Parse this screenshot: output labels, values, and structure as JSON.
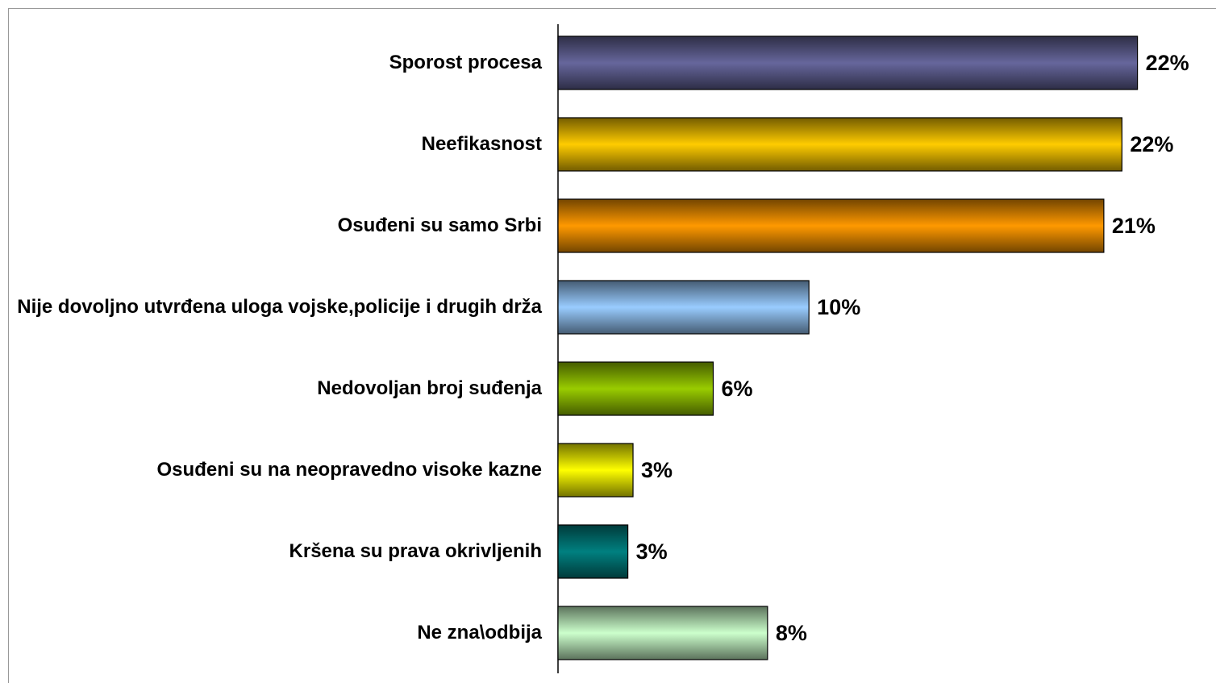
{
  "chart_data": {
    "type": "bar",
    "orientation": "horizontal",
    "categories": [
      "Sporost procesa",
      "Neefikasnost",
      "Osuđeni su samo Srbi",
      "Nije dovoljno utvrđena uloga vojske,policije i drugih drža",
      "Nedovoljan broj suđenja",
      "Osuđeni su na neopravedno visoke kazne",
      "Kršena su prava okrivljenih",
      "Ne zna\\odbija"
    ],
    "values": [
      22.4,
      21.8,
      21.1,
      9.7,
      6.0,
      2.9,
      2.7,
      8.1
    ],
    "value_labels": [
      "22%",
      "22%",
      "21%",
      "10%",
      "6%",
      "3%",
      "3%",
      "8%"
    ],
    "colors": [
      "#66669c",
      "#ffcc00",
      "#ff9900",
      "#99ccff",
      "#99cc00",
      "#ffff00",
      "#008080",
      "#ccffcc"
    ],
    "xlim": [
      0,
      25
    ]
  }
}
